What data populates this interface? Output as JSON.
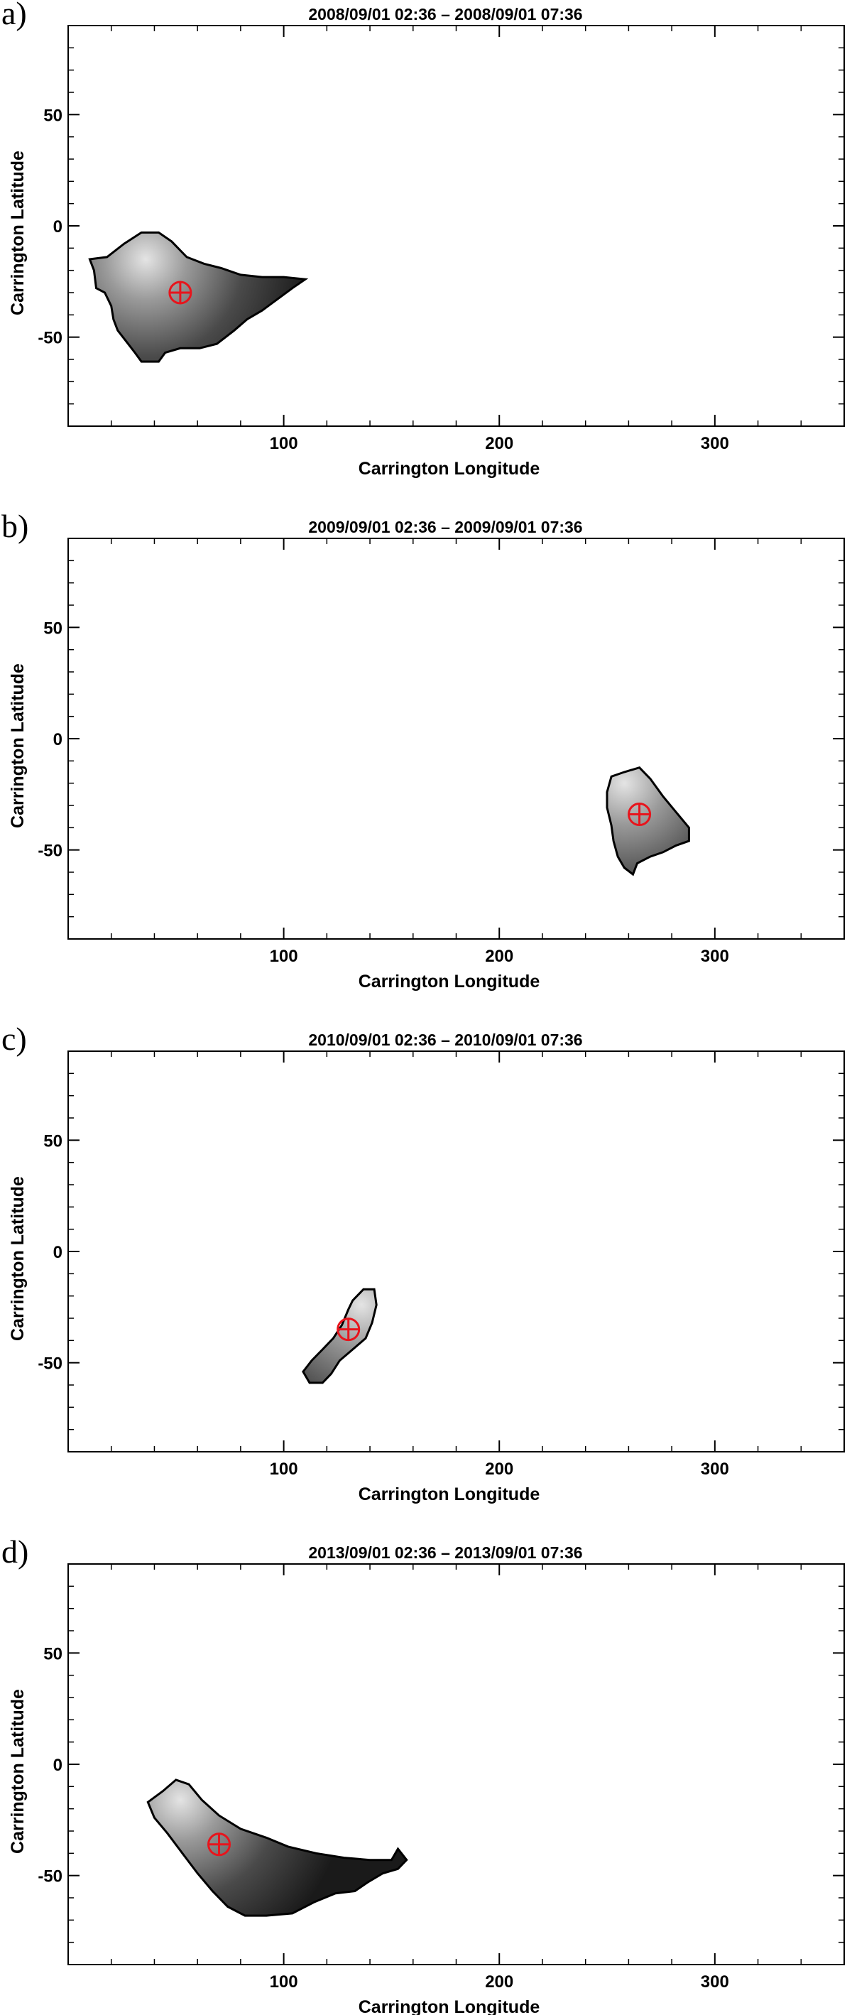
{
  "chart_data": [
    {
      "type": "scatter",
      "panel_label": "a)",
      "title": "2008/09/01 02:36 – 2008/09/01 07:36",
      "xlabel": "Carrington Longitude",
      "ylabel": "Carrington Latitude",
      "xlim": [
        0,
        360
      ],
      "ylim": [
        -90,
        90
      ],
      "xticks": [
        100,
        200,
        300
      ],
      "yticks": [
        -50,
        0,
        50
      ],
      "grid": false,
      "region": {
        "name": "",
        "color_scale": "grayscale",
        "outline_lon_lat": [
          [
            10,
            -15
          ],
          [
            18,
            -14
          ],
          [
            26,
            -8
          ],
          [
            34,
            -3
          ],
          [
            42,
            -3
          ],
          [
            48,
            -7
          ],
          [
            55,
            -14
          ],
          [
            63,
            -17
          ],
          [
            71,
            -19
          ],
          [
            80,
            -22
          ],
          [
            90,
            -23
          ],
          [
            100,
            -23
          ],
          [
            110,
            -24
          ],
          [
            104,
            -28
          ],
          [
            97,
            -33
          ],
          [
            90,
            -38
          ],
          [
            83,
            -42
          ],
          [
            77,
            -47
          ],
          [
            69,
            -53
          ],
          [
            61,
            -55
          ],
          [
            52,
            -55
          ],
          [
            45,
            -57
          ],
          [
            42,
            -61
          ],
          [
            34,
            -61
          ],
          [
            31,
            -57
          ],
          [
            27,
            -52
          ],
          [
            23,
            -47
          ],
          [
            21,
            -42
          ],
          [
            20,
            -36
          ],
          [
            17,
            -30
          ],
          [
            13,
            -28
          ],
          [
            12,
            -20
          ]
        ],
        "bright_center_lon_lat": [
          36,
          -15
        ]
      },
      "centroid": {
        "lon": 52,
        "lat": -30
      }
    },
    {
      "type": "scatter",
      "panel_label": "b)",
      "title": "2009/09/01 02:36 – 2009/09/01 07:36",
      "xlabel": "Carrington Longitude",
      "ylabel": "Carrington Latitude",
      "xlim": [
        0,
        360
      ],
      "ylim": [
        -90,
        90
      ],
      "xticks": [
        100,
        200,
        300
      ],
      "yticks": [
        -50,
        0,
        50
      ],
      "grid": false,
      "region": {
        "name": "",
        "color_scale": "grayscale",
        "outline_lon_lat": [
          [
            252,
            -17
          ],
          [
            258,
            -15
          ],
          [
            265,
            -13
          ],
          [
            270,
            -18
          ],
          [
            276,
            -26
          ],
          [
            282,
            -33
          ],
          [
            288,
            -40
          ],
          [
            288,
            -46
          ],
          [
            282,
            -48
          ],
          [
            276,
            -51
          ],
          [
            270,
            -53
          ],
          [
            264,
            -56
          ],
          [
            262,
            -61
          ],
          [
            258,
            -58
          ],
          [
            255,
            -53
          ],
          [
            253,
            -46
          ],
          [
            252,
            -39
          ],
          [
            250,
            -31
          ],
          [
            250,
            -24
          ]
        ],
        "bright_center_lon_lat": [
          258,
          -20
        ]
      },
      "centroid": {
        "lon": 265,
        "lat": -34
      }
    },
    {
      "type": "scatter",
      "panel_label": "c)",
      "title": "2010/09/01 02:36 – 2010/09/01 07:36",
      "xlabel": "Carrington Longitude",
      "ylabel": "Carrington Latitude",
      "xlim": [
        0,
        360
      ],
      "ylim": [
        -90,
        90
      ],
      "xticks": [
        100,
        200,
        300
      ],
      "yticks": [
        -50,
        0,
        50
      ],
      "grid": false,
      "region": {
        "name": "",
        "color_scale": "grayscale",
        "outline_lon_lat": [
          [
            132,
            -22
          ],
          [
            137,
            -17
          ],
          [
            142,
            -17
          ],
          [
            143,
            -24
          ],
          [
            141,
            -32
          ],
          [
            138,
            -39
          ],
          [
            132,
            -44
          ],
          [
            126,
            -49
          ],
          [
            122,
            -55
          ],
          [
            118,
            -59
          ],
          [
            112,
            -59
          ],
          [
            109,
            -54
          ],
          [
            113,
            -49
          ],
          [
            118,
            -44
          ],
          [
            123,
            -39
          ],
          [
            127,
            -33
          ],
          [
            130,
            -26
          ]
        ],
        "bright_center_lon_lat": [
          136,
          -24
        ]
      },
      "centroid": {
        "lon": 130,
        "lat": -35
      }
    },
    {
      "type": "scatter",
      "panel_label": "d)",
      "title": "2013/09/01 02:36 – 2013/09/01 07:36",
      "xlabel": "Carrington Longitude",
      "ylabel": "Carrington Latitude",
      "xlim": [
        0,
        360
      ],
      "ylim": [
        -90,
        90
      ],
      "xticks": [
        100,
        200,
        300
      ],
      "yticks": [
        -50,
        0,
        50
      ],
      "grid": false,
      "region": {
        "name": "",
        "color_scale": "grayscale",
        "outline_lon_lat": [
          [
            37,
            -17
          ],
          [
            44,
            -12
          ],
          [
            50,
            -7
          ],
          [
            56,
            -9
          ],
          [
            62,
            -16
          ],
          [
            70,
            -23
          ],
          [
            80,
            -29
          ],
          [
            92,
            -33
          ],
          [
            102,
            -37
          ],
          [
            115,
            -40
          ],
          [
            128,
            -42
          ],
          [
            140,
            -43
          ],
          [
            150,
            -43
          ],
          [
            153,
            -38
          ],
          [
            157,
            -43
          ],
          [
            153,
            -47
          ],
          [
            146,
            -49
          ],
          [
            139,
            -53
          ],
          [
            133,
            -57
          ],
          [
            124,
            -58
          ],
          [
            114,
            -62
          ],
          [
            104,
            -67
          ],
          [
            92,
            -68
          ],
          [
            82,
            -68
          ],
          [
            74,
            -64
          ],
          [
            67,
            -57
          ],
          [
            60,
            -49
          ],
          [
            53,
            -40
          ],
          [
            46,
            -31
          ],
          [
            40,
            -24
          ]
        ],
        "bright_center_lon_lat": [
          52,
          -16
        ]
      },
      "centroid": {
        "lon": 70,
        "lat": -36
      }
    }
  ],
  "colors": {
    "marker": "#e8141c",
    "outline": "#000000"
  }
}
